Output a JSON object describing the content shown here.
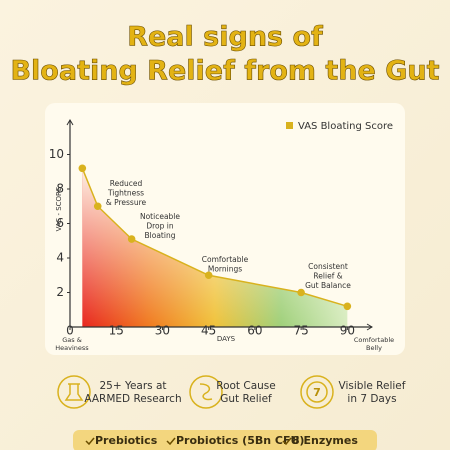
{
  "header": {
    "title_lines": [
      "Real signs of",
      "Bloating Relief from the Gut"
    ]
  },
  "chart_data": {
    "type": "line",
    "x": [
      4,
      9,
      20,
      45,
      75,
      90
    ],
    "series": [
      {
        "name": "VAS Bloating Score",
        "color": "#d9b21e",
        "values": [
          9.2,
          7.0,
          5.1,
          3.0,
          2.0,
          1.2
        ]
      }
    ],
    "xlim": [
      0,
      98
    ],
    "ylim": [
      0,
      12
    ],
    "xticks": [
      0,
      15,
      30,
      45,
      60,
      75,
      90
    ],
    "yticks": [
      2,
      4,
      6,
      8,
      10
    ],
    "xlabel": "DAYS",
    "ylabel": "VAS - SCORE",
    "x_start_label": "Gas & Heaviness",
    "x_end_label": "Comfortable Belly",
    "legend": "top-right",
    "annotations": [
      {
        "lines": [
          "Reduced",
          "Tightness",
          "& Pressure"
        ]
      },
      {
        "lines": [
          "Noticeable",
          "Drop in",
          "Bloating"
        ]
      },
      {
        "lines": [
          "Comfortable",
          "Mornings"
        ]
      },
      {
        "lines": [
          "Consistent",
          "Relief &",
          "Gut Balance"
        ]
      }
    ]
  },
  "features": [
    {
      "lines": [
        "25+ Years at",
        "AARMED Research"
      ]
    },
    {
      "lines": [
        "Root Cause",
        "Gut Relief"
      ]
    },
    {
      "lines": [
        "Visible Relief",
        "in 7 Days"
      ]
    }
  ],
  "ingredients": [
    "Prebiotics",
    "Probiotics (5Bn CFU)",
    "8 Enzymes"
  ]
}
